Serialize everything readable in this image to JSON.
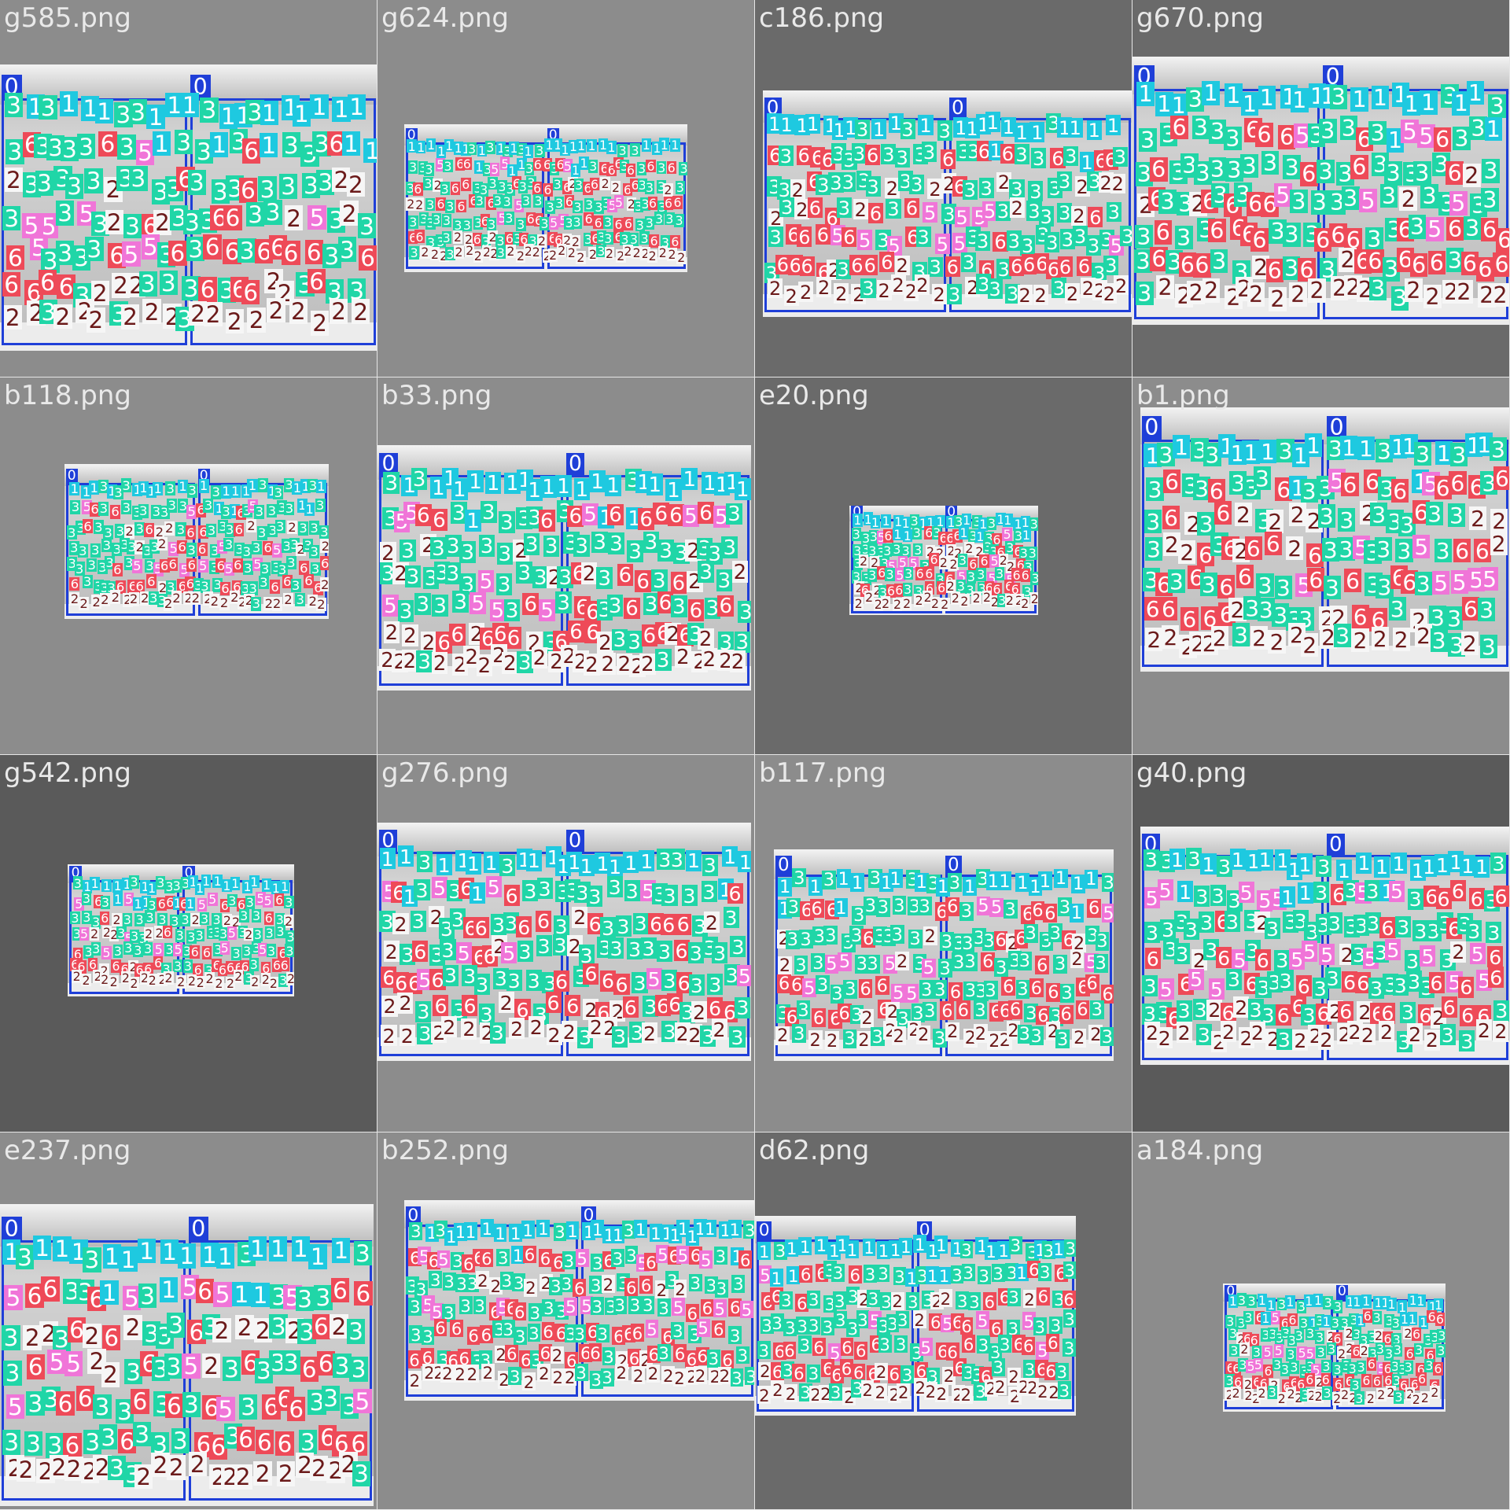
{
  "tiles": [
    {
      "name": "g585.png"
    },
    {
      "name": "g624.png"
    },
    {
      "name": "c186.png"
    },
    {
      "name": "g670.png"
    },
    {
      "name": "b118.png"
    },
    {
      "name": "b33.png"
    },
    {
      "name": "e20.png"
    },
    {
      "name": "b1.png"
    },
    {
      "name": "g542.png"
    },
    {
      "name": "g276.png"
    },
    {
      "name": "b117.png"
    },
    {
      "name": "g40.png"
    },
    {
      "name": "e237.png"
    },
    {
      "name": "b252.png"
    },
    {
      "name": "d62.png"
    },
    {
      "name": "a184.png"
    }
  ],
  "classes": [
    {
      "id": "0",
      "color": "#1f3fd8",
      "text_color": "#ffffff"
    },
    {
      "id": "1",
      "color": "#1ec9e0",
      "text_color": "#ffffff"
    },
    {
      "id": "2",
      "color": "#f6f6f6",
      "text_color": "#6b1a1a"
    },
    {
      "id": "3",
      "color": "#20d6a7",
      "text_color": "#ffffff"
    },
    {
      "id": "5",
      "color": "#f075d8",
      "text_color": "#ffffff"
    },
    {
      "id": "6",
      "color": "#ee4a58",
      "text_color": "#ffffff"
    }
  ]
}
